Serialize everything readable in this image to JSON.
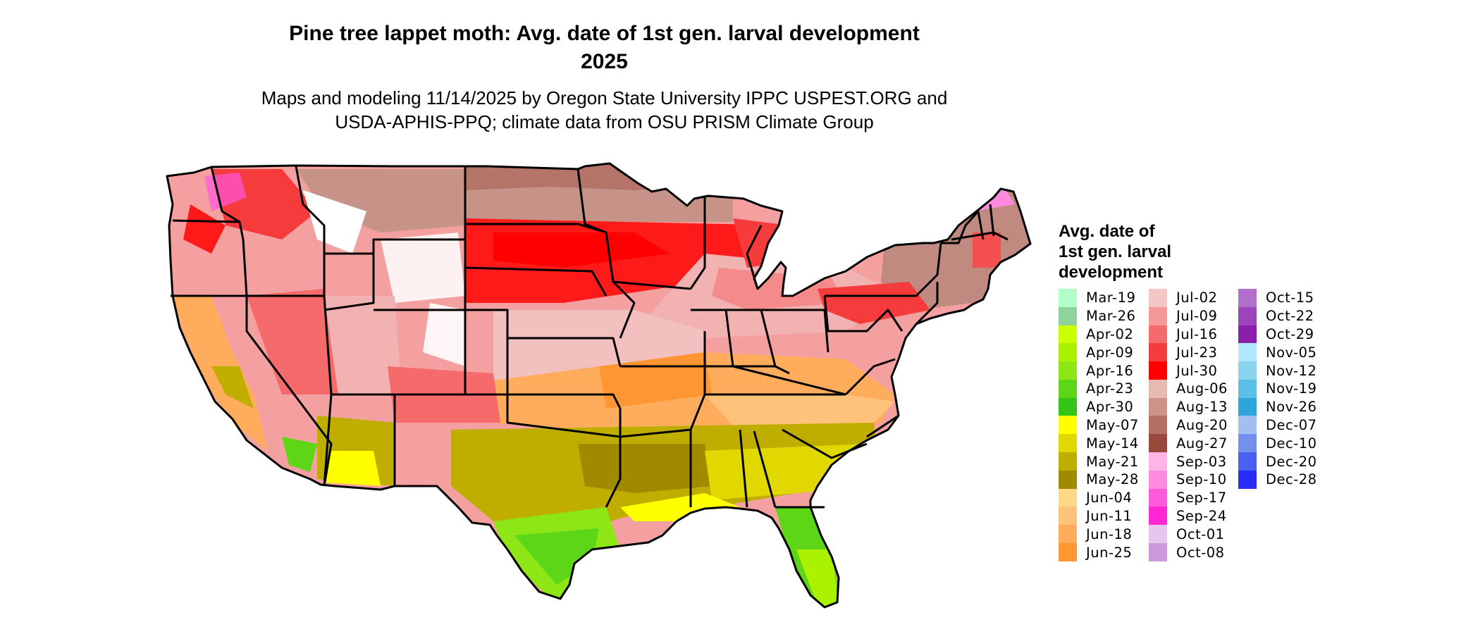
{
  "title": {
    "line1": "Pine tree lappet moth: Avg. date of 1st gen. larval development",
    "line2": "2025"
  },
  "subtitle": {
    "line1": "Maps and modeling 11/14/2025 by Oregon State University IPPC USPEST.ORG and",
    "line2": "USDA-APHIS-PPQ; climate data from OSU PRISM Climate Group"
  },
  "legend": {
    "title_lines": [
      "Avg. date of",
      "1st gen. larval",
      "development"
    ],
    "columns": [
      [
        {
          "label": "Mar-19",
          "color": "#b3ffcc"
        },
        {
          "label": "Mar-26",
          "color": "#8ed39b"
        },
        {
          "label": "Apr-02",
          "color": "#ccff00"
        },
        {
          "label": "Apr-09",
          "color": "#aaf200"
        },
        {
          "label": "Apr-16",
          "color": "#8ee617"
        },
        {
          "label": "Apr-23",
          "color": "#5cd617"
        },
        {
          "label": "Apr-30",
          "color": "#33c417"
        },
        {
          "label": "May-07",
          "color": "#ffff00"
        },
        {
          "label": "May-14",
          "color": "#e0d800"
        },
        {
          "label": "May-21",
          "color": "#bfae00"
        },
        {
          "label": "May-28",
          "color": "#9f8a00"
        },
        {
          "label": "Jun-04",
          "color": "#ffd98a"
        },
        {
          "label": "Jun-11",
          "color": "#ffc27a"
        },
        {
          "label": "Jun-18",
          "color": "#ffad5c"
        },
        {
          "label": "Jun-25",
          "color": "#ff9633"
        }
      ],
      [
        {
          "label": "Jul-02",
          "color": "#f5c6c6"
        },
        {
          "label": "Jul-09",
          "color": "#f59898"
        },
        {
          "label": "Jul-16",
          "color": "#f56b6b"
        },
        {
          "label": "Jul-23",
          "color": "#f53b3b"
        },
        {
          "label": "Jul-30",
          "color": "#ff0000"
        },
        {
          "label": "Aug-06",
          "color": "#e6bab0"
        },
        {
          "label": "Aug-13",
          "color": "#cc9488"
        },
        {
          "label": "Aug-20",
          "color": "#b36f62"
        },
        {
          "label": "Aug-27",
          "color": "#99493b"
        },
        {
          "label": "Sep-03",
          "color": "#ffb3e6"
        },
        {
          "label": "Sep-10",
          "color": "#ff8ae0"
        },
        {
          "label": "Sep-17",
          "color": "#ff59dc"
        },
        {
          "label": "Sep-24",
          "color": "#ff26d6"
        },
        {
          "label": "Oct-01",
          "color": "#e6c6ee"
        },
        {
          "label": "Oct-08",
          "color": "#cc99dd"
        }
      ],
      [
        {
          "label": "Oct-15",
          "color": "#b36fcc"
        },
        {
          "label": "Oct-22",
          "color": "#9c45bb"
        },
        {
          "label": "Oct-29",
          "color": "#8a1fab"
        },
        {
          "label": "Nov-05",
          "color": "#b3e6ff"
        },
        {
          "label": "Nov-12",
          "color": "#8ad4f2"
        },
        {
          "label": "Nov-19",
          "color": "#5cbfe6"
        },
        {
          "label": "Nov-26",
          "color": "#2ea6d9"
        },
        {
          "label": "Dec-07",
          "color": "#a3bff0"
        },
        {
          "label": "Dec-10",
          "color": "#7390ec"
        },
        {
          "label": "Dec-20",
          "color": "#4a60f0"
        },
        {
          "label": "Dec-28",
          "color": "#2b2bf7"
        }
      ]
    ]
  }
}
